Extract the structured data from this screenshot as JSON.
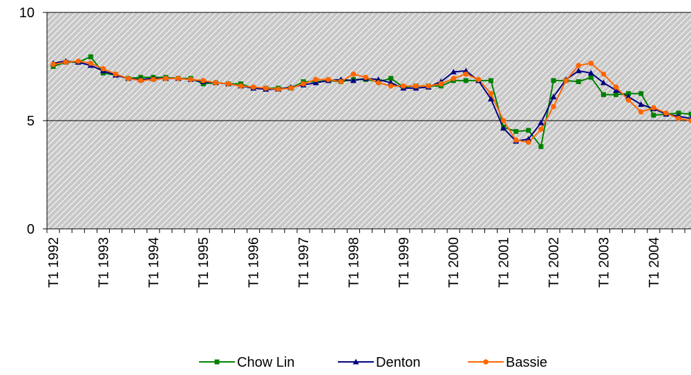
{
  "chart_data": {
    "type": "line",
    "categories": [
      "T1 1992",
      null,
      null,
      null,
      "T1 1993",
      null,
      null,
      null,
      "T1 1994",
      null,
      null,
      null,
      "T1 1995",
      null,
      null,
      null,
      "T1 1996",
      null,
      null,
      null,
      "T1 1997",
      null,
      null,
      null,
      "T1 1998",
      null,
      null,
      null,
      "T1 1999",
      null,
      null,
      null,
      "T1 2000",
      null,
      null,
      null,
      "T1 2001",
      null,
      null,
      null,
      "T1 2002",
      null,
      null,
      null,
      "T1 2003",
      null,
      null,
      null,
      "T1 2004",
      null,
      null,
      null
    ],
    "series": [
      {
        "name": "Chow Lin",
        "color": "#008000",
        "marker": "square",
        "values": [
          7.5,
          7.7,
          7.7,
          7.95,
          7.2,
          7.1,
          6.95,
          7.0,
          7.0,
          7.0,
          6.95,
          6.95,
          6.7,
          6.75,
          6.7,
          6.7,
          6.5,
          6.5,
          6.5,
          6.5,
          6.8,
          6.8,
          6.85,
          6.8,
          6.9,
          6.9,
          6.8,
          6.95,
          6.55,
          6.6,
          6.6,
          6.6,
          6.85,
          6.85,
          6.85,
          6.85,
          4.7,
          4.5,
          4.55,
          3.8,
          6.85,
          6.85,
          6.8,
          7.0,
          6.2,
          6.2,
          6.25,
          6.25,
          5.25,
          5.3,
          5.35,
          5.3
        ]
      },
      {
        "name": "Denton",
        "color": "#000080",
        "marker": "triangle",
        "values": [
          7.65,
          7.75,
          7.7,
          7.55,
          7.3,
          7.1,
          6.95,
          6.9,
          6.95,
          6.95,
          6.95,
          6.9,
          6.8,
          6.75,
          6.7,
          6.6,
          6.5,
          6.45,
          6.45,
          6.55,
          6.65,
          6.75,
          6.85,
          6.9,
          6.85,
          6.95,
          6.9,
          6.75,
          6.5,
          6.5,
          6.55,
          6.8,
          7.25,
          7.3,
          6.85,
          6.0,
          4.65,
          4.05,
          4.15,
          4.9,
          6.1,
          6.9,
          7.3,
          7.2,
          6.75,
          6.4,
          6.1,
          5.75,
          5.55,
          5.3,
          5.2,
          5.1
        ]
      },
      {
        "name": "Bassie",
        "color": "#ff6600",
        "marker": "circle",
        "values": [
          7.6,
          7.7,
          7.75,
          7.65,
          7.4,
          7.15,
          6.95,
          6.85,
          6.9,
          6.95,
          6.95,
          6.9,
          6.85,
          6.75,
          6.7,
          6.6,
          6.55,
          6.5,
          6.45,
          6.5,
          6.7,
          6.9,
          6.9,
          6.8,
          7.15,
          7.0,
          6.75,
          6.6,
          6.6,
          6.6,
          6.6,
          6.7,
          6.95,
          7.15,
          6.9,
          6.25,
          5.0,
          4.1,
          4.0,
          4.6,
          5.65,
          6.85,
          7.55,
          7.65,
          7.15,
          6.55,
          5.95,
          5.4,
          5.6,
          5.35,
          5.1,
          5.0
        ]
      }
    ],
    "ylim": [
      0,
      10
    ],
    "yticks": [
      0,
      5,
      10
    ],
    "grid": true,
    "legend": "bottom"
  }
}
